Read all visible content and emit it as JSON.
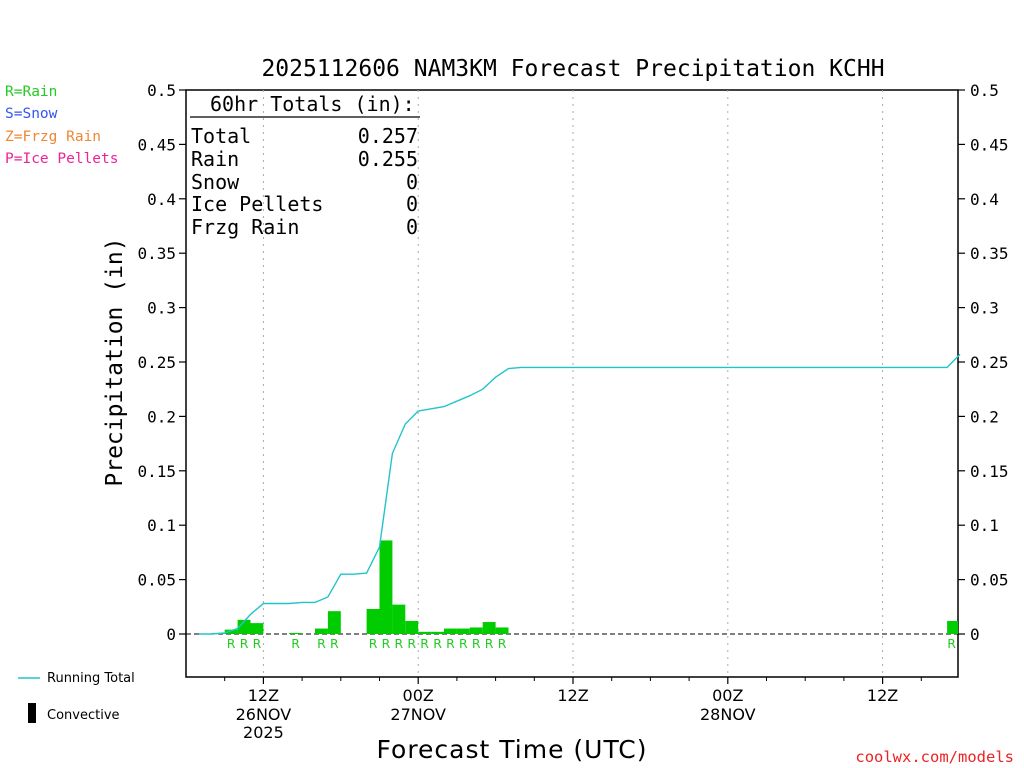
{
  "chart_data": {
    "type": "bar",
    "title": "2025112606 NAM3KM Forecast Precipitation KCHH",
    "xlabel": "Forecast Time (UTC)",
    "ylabel": "Precipitation (in)",
    "ylim": [
      -0.04,
      0.5
    ],
    "y_ticks": [
      "0",
      "0.05",
      "0.1",
      "0.15",
      "0.2",
      "0.25",
      "0.3",
      "0.35",
      "0.4",
      "0.45",
      "0.5"
    ],
    "x_range_hours": [
      6,
      66
    ],
    "x_ticks": [
      {
        "hour": 12,
        "label": "12Z",
        "sub": "26NOV",
        "sub2": "2025"
      },
      {
        "hour": 24,
        "label": "00Z",
        "sub": "27NOV",
        "sub2": ""
      },
      {
        "hour": 36,
        "label": "12Z",
        "sub": "",
        "sub2": ""
      },
      {
        "hour": 48,
        "label": "00Z",
        "sub": "28NOV",
        "sub2": ""
      },
      {
        "hour": 60,
        "label": "12Z",
        "sub": "",
        "sub2": ""
      }
    ],
    "grid": "vertical-dotted",
    "totals_box": {
      "heading": "60hr Totals (in):",
      "rows": [
        {
          "label": "Total",
          "value": "0.257"
        },
        {
          "label": "Rain",
          "value": "0.255"
        },
        {
          "label": "Snow",
          "value": "0"
        },
        {
          "label": "Ice Pellets",
          "value": "0"
        },
        {
          "label": "Frzg Rain",
          "value": "0"
        }
      ]
    },
    "type_legend": [
      {
        "text": "R=Rain",
        "color": "#22cc22"
      },
      {
        "text": "S=Snow",
        "color": "#3355ee"
      },
      {
        "text": "Z=Frzg Rain",
        "color": "#ee8833"
      },
      {
        "text": "P=Ice Pellets",
        "color": "#ee2299"
      }
    ],
    "series_legend": [
      {
        "name": "Running Total",
        "kind": "line",
        "color": "#22c4cc"
      },
      {
        "name": "Convective",
        "kind": "bar",
        "color": "#000000"
      }
    ],
    "bar_color": "#00cc00",
    "line_color": "#22c4cc",
    "hourly_bars": [
      {
        "hour": 9,
        "value": 0.001,
        "ptype": ""
      },
      {
        "hour": 10,
        "value": 0.004,
        "ptype": "R"
      },
      {
        "hour": 11,
        "value": 0.013,
        "ptype": "R"
      },
      {
        "hour": 12,
        "value": 0.01,
        "ptype": "R"
      },
      {
        "hour": 15,
        "value": 0.001,
        "ptype": "R"
      },
      {
        "hour": 17,
        "value": 0.005,
        "ptype": "R"
      },
      {
        "hour": 18,
        "value": 0.021,
        "ptype": "R"
      },
      {
        "hour": 21,
        "value": 0.023,
        "ptype": "R"
      },
      {
        "hour": 22,
        "value": 0.086,
        "ptype": "R"
      },
      {
        "hour": 23,
        "value": 0.027,
        "ptype": "R"
      },
      {
        "hour": 24,
        "value": 0.012,
        "ptype": "R"
      },
      {
        "hour": 25,
        "value": 0.002,
        "ptype": "R"
      },
      {
        "hour": 26,
        "value": 0.002,
        "ptype": "R"
      },
      {
        "hour": 27,
        "value": 0.005,
        "ptype": "R"
      },
      {
        "hour": 28,
        "value": 0.005,
        "ptype": "R"
      },
      {
        "hour": 29,
        "value": 0.006,
        "ptype": "R"
      },
      {
        "hour": 30,
        "value": 0.011,
        "ptype": "R"
      },
      {
        "hour": 31,
        "value": 0.006,
        "ptype": "R"
      },
      {
        "hour": 66,
        "value": 0.012,
        "ptype": "R"
      }
    ],
    "running_total": [
      {
        "hour": 7,
        "value": 0
      },
      {
        "hour": 8,
        "value": 0
      },
      {
        "hour": 9,
        "value": 0.001
      },
      {
        "hour": 10,
        "value": 0.005
      },
      {
        "hour": 11,
        "value": 0.018
      },
      {
        "hour": 12,
        "value": 0.028
      },
      {
        "hour": 14,
        "value": 0.028
      },
      {
        "hour": 15,
        "value": 0.029
      },
      {
        "hour": 16,
        "value": 0.029
      },
      {
        "hour": 17,
        "value": 0.034
      },
      {
        "hour": 18,
        "value": 0.055
      },
      {
        "hour": 19,
        "value": 0.055
      },
      {
        "hour": 20,
        "value": 0.056
      },
      {
        "hour": 21,
        "value": 0.08
      },
      {
        "hour": 22,
        "value": 0.166
      },
      {
        "hour": 23,
        "value": 0.193
      },
      {
        "hour": 24,
        "value": 0.205
      },
      {
        "hour": 25,
        "value": 0.207
      },
      {
        "hour": 26,
        "value": 0.209
      },
      {
        "hour": 27,
        "value": 0.214
      },
      {
        "hour": 28,
        "value": 0.219
      },
      {
        "hour": 29,
        "value": 0.225
      },
      {
        "hour": 30,
        "value": 0.236
      },
      {
        "hour": 31,
        "value": 0.244
      },
      {
        "hour": 32,
        "value": 0.245
      },
      {
        "hour": 65,
        "value": 0.245
      },
      {
        "hour": 66,
        "value": 0.257
      }
    ]
  },
  "footer": {
    "credit": "coolwx.com/models"
  }
}
